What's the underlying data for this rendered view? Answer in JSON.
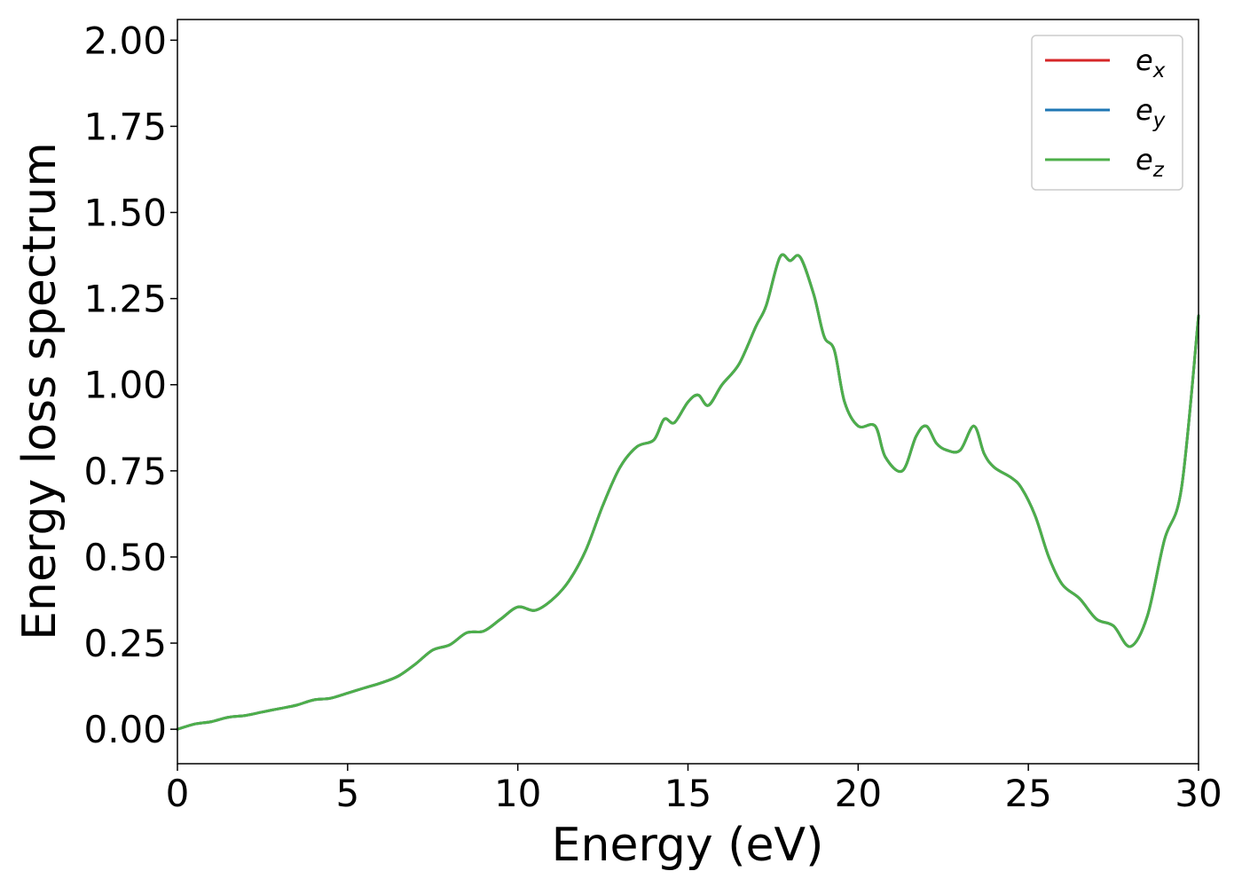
{
  "chart_data": {
    "type": "line",
    "title": "",
    "xlabel": "Energy (eV)",
    "ylabel": "Energy loss spectrum",
    "xlim": [
      0,
      30
    ],
    "ylim": [
      -0.1,
      2.06
    ],
    "xticks": [
      "0",
      "5",
      "10",
      "15",
      "20",
      "25",
      "30"
    ],
    "yticks": [
      "0.00",
      "0.25",
      "0.50",
      "0.75",
      "1.00",
      "1.25",
      "1.50",
      "1.75",
      "2.00"
    ],
    "grid": false,
    "legend_position": "top-right",
    "x": [
      0,
      0.5,
      1,
      1.5,
      2,
      2.5,
      3,
      3.5,
      4,
      4.5,
      5,
      5.5,
      6,
      6.5,
      7,
      7.5,
      8,
      8.5,
      9,
      9.5,
      10,
      10.5,
      11,
      11.5,
      12,
      12.5,
      13,
      13.5,
      14,
      14.3,
      14.6,
      15,
      15.3,
      15.6,
      16,
      16.5,
      17,
      17.3,
      17.7,
      18,
      18.3,
      18.7,
      19,
      19.3,
      19.6,
      20,
      20.5,
      20.8,
      21.3,
      21.7,
      22,
      22.3,
      22.6,
      23,
      23.4,
      23.7,
      24,
      24.5,
      24.8,
      25.2,
      25.6,
      26,
      26.5,
      27,
      27.5,
      28,
      28.5,
      29,
      29.5,
      30
    ],
    "series": [
      {
        "name": "e",
        "subscript": "x",
        "color": "#d62728",
        "values": [
          0.0,
          0.015,
          0.022,
          0.035,
          0.04,
          0.05,
          0.06,
          0.07,
          0.085,
          0.09,
          0.105,
          0.12,
          0.135,
          0.155,
          0.19,
          0.23,
          0.245,
          0.28,
          0.285,
          0.32,
          0.355,
          0.345,
          0.375,
          0.43,
          0.52,
          0.65,
          0.76,
          0.82,
          0.84,
          0.9,
          0.89,
          0.95,
          0.97,
          0.94,
          1.0,
          1.06,
          1.17,
          1.23,
          1.37,
          1.36,
          1.37,
          1.26,
          1.14,
          1.1,
          0.95,
          0.88,
          0.88,
          0.79,
          0.75,
          0.85,
          0.88,
          0.83,
          0.81,
          0.81,
          0.88,
          0.8,
          0.76,
          0.73,
          0.7,
          0.62,
          0.5,
          0.42,
          0.38,
          0.32,
          0.3,
          0.24,
          0.33,
          0.55,
          0.7,
          1.2
        ]
      },
      {
        "name": "e",
        "subscript": "y",
        "color": "#1f77b4",
        "values": [
          0.0,
          0.015,
          0.022,
          0.035,
          0.04,
          0.05,
          0.06,
          0.07,
          0.085,
          0.09,
          0.105,
          0.12,
          0.135,
          0.155,
          0.19,
          0.23,
          0.245,
          0.28,
          0.285,
          0.32,
          0.355,
          0.345,
          0.375,
          0.43,
          0.52,
          0.65,
          0.76,
          0.82,
          0.84,
          0.9,
          0.89,
          0.95,
          0.97,
          0.94,
          1.0,
          1.06,
          1.17,
          1.23,
          1.37,
          1.36,
          1.37,
          1.26,
          1.14,
          1.1,
          0.95,
          0.88,
          0.88,
          0.79,
          0.75,
          0.85,
          0.88,
          0.83,
          0.81,
          0.81,
          0.88,
          0.8,
          0.76,
          0.73,
          0.7,
          0.62,
          0.5,
          0.42,
          0.38,
          0.32,
          0.3,
          0.24,
          0.33,
          0.55,
          0.7,
          1.2
        ]
      },
      {
        "name": "e",
        "subscript": "z",
        "color": "#4daf4a",
        "values": [
          0.0,
          0.015,
          0.022,
          0.035,
          0.04,
          0.05,
          0.06,
          0.07,
          0.085,
          0.09,
          0.105,
          0.12,
          0.135,
          0.155,
          0.19,
          0.23,
          0.245,
          0.28,
          0.285,
          0.32,
          0.355,
          0.345,
          0.375,
          0.43,
          0.52,
          0.65,
          0.76,
          0.82,
          0.84,
          0.9,
          0.89,
          0.95,
          0.97,
          0.94,
          1.0,
          1.06,
          1.17,
          1.23,
          1.37,
          1.36,
          1.37,
          1.26,
          1.14,
          1.1,
          0.95,
          0.88,
          0.88,
          0.79,
          0.75,
          0.85,
          0.88,
          0.83,
          0.81,
          0.81,
          0.88,
          0.8,
          0.76,
          0.73,
          0.7,
          0.62,
          0.5,
          0.42,
          0.38,
          0.32,
          0.3,
          0.24,
          0.33,
          0.55,
          0.7,
          1.2
        ]
      }
    ]
  }
}
